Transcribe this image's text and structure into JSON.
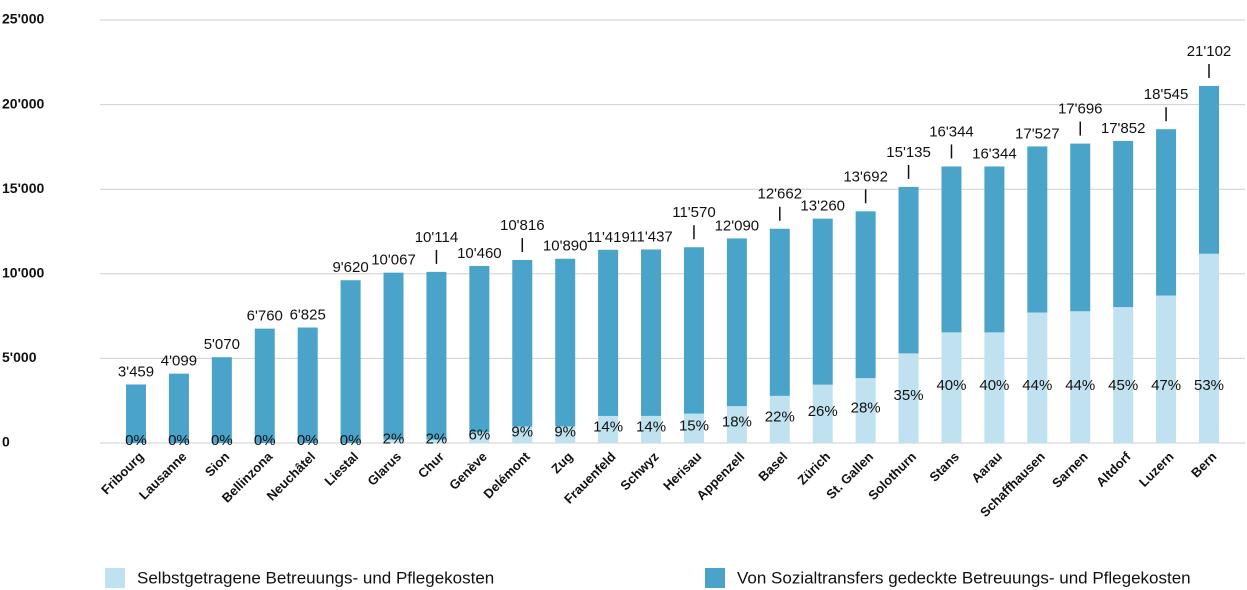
{
  "chart_data": {
    "type": "stacked-bar",
    "categories": [
      "Fribourg",
      "Lausanne",
      "Sion",
      "Bellinzona",
      "Neuchâtel",
      "Liestal",
      "Glarus",
      "Chur",
      "Genève",
      "Delémont",
      "Zug",
      "Frauenfeld",
      "Schwyz",
      "Herisau",
      "Appenzell",
      "Basel",
      "Zürich",
      "St. Gallen",
      "Solothurn",
      "Stans",
      "Aarau",
      "Schaffhausen",
      "Sarnen",
      "Altdorf",
      "Luzern",
      "Bern"
    ],
    "series": [
      {
        "name": "Selbstgetragene Betreuungs- und Pflegekosten",
        "color": "#bfe1f0",
        "values": [
          0,
          0,
          0,
          0,
          0,
          0,
          201,
          202,
          628,
          973,
          980,
          1599,
          1601,
          1736,
          2176,
          2786,
          3448,
          3834,
          5297,
          6538,
          6538,
          7712,
          7786,
          8033,
          8716,
          11184
        ]
      },
      {
        "name": "Von Sozialtransfers gedeckte Betreuungs- und Pflegekosten",
        "color": "#4aa3c8",
        "values": [
          3459,
          4099,
          5070,
          6760,
          6825,
          9620,
          9866,
          9912,
          9832,
          9843,
          9910,
          9820,
          9836,
          9834,
          9914,
          9876,
          9812,
          9858,
          9838,
          9806,
          9806,
          9815,
          9910,
          9819,
          9829,
          9918
        ]
      }
    ],
    "totals": {
      "values": [
        3459,
        4099,
        5070,
        6760,
        6825,
        9620,
        10067,
        10114,
        10460,
        10816,
        10890,
        11419,
        11437,
        11570,
        12090,
        12662,
        13260,
        13692,
        15135,
        16344,
        16344,
        17527,
        17696,
        17852,
        18545,
        21102
      ],
      "value_labels": [
        "3'459",
        "4'099",
        "5'070",
        "6'760",
        "6'825",
        "9'620",
        "10'067",
        "10'114",
        "10'460",
        "10'816",
        "10'890",
        "11'419",
        "11'437",
        "11'570",
        "12'090",
        "12'662",
        "13'260",
        "13'692",
        "15'135",
        "16'344",
        "16'344",
        "17'527",
        "17'696",
        "17'852",
        "18'545",
        "21'102"
      ]
    },
    "shares": {
      "values": [
        0,
        0,
        0,
        0,
        0,
        0,
        2,
        2,
        6,
        9,
        9,
        14,
        14,
        15,
        18,
        22,
        26,
        28,
        35,
        40,
        40,
        44,
        44,
        45,
        47,
        53
      ],
      "value_labels": [
        "0%",
        "0%",
        "0%",
        "0%",
        "0%",
        "0%",
        "2%",
        "2%",
        "6%",
        "9%",
        "9%",
        "14%",
        "14%",
        "15%",
        "18%",
        "22%",
        "26%",
        "28%",
        "35%",
        "40%",
        "40%",
        "44%",
        "44%",
        "45%",
        "47%",
        "53%"
      ]
    },
    "ylim": [
      0,
      25000
    ],
    "yticks": [
      {
        "value": 0,
        "label": "0"
      },
      {
        "value": 5000,
        "label": "5'000"
      },
      {
        "value": 10000,
        "label": "10'000"
      },
      {
        "value": 15000,
        "label": "15'000"
      },
      {
        "value": 20000,
        "label": "20'000"
      },
      {
        "value": 25000,
        "label": "25'000"
      }
    ],
    "grid": true
  }
}
